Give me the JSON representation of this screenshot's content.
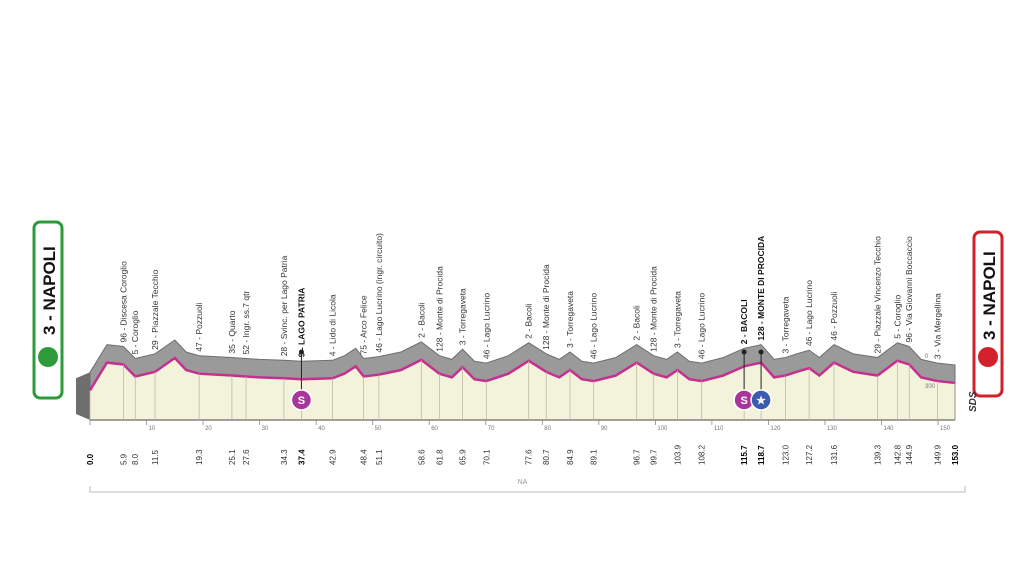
{
  "chart_data": {
    "type": "area",
    "start_city": "3 - NAPOLI",
    "finish_city": "3 - NAPOLI",
    "brand_mark": "SDS",
    "distance_total_label": "NA",
    "altitude_ticks": [
      "0",
      "300"
    ],
    "x_ticks": [
      0,
      10,
      20,
      30,
      40,
      50,
      60,
      70,
      80,
      90,
      100,
      110,
      120,
      130,
      140,
      150
    ],
    "xlim": [
      0,
      153
    ],
    "ylim": [
      0,
      130
    ],
    "profile": {
      "x": [
        0,
        3,
        5.9,
        8,
        11.5,
        15,
        17,
        19.3,
        25,
        27.6,
        30,
        34.3,
        37.4,
        42.9,
        45,
        47,
        48.4,
        51.1,
        55,
        58.6,
        61.8,
        64,
        65.9,
        68,
        70.1,
        74,
        77.6,
        80.7,
        83,
        84.9,
        87,
        89.1,
        93,
        96.7,
        99.7,
        102,
        103.9,
        106,
        108.2,
        112,
        115.7,
        118.7,
        121,
        123,
        125,
        127.2,
        129,
        131.6,
        135,
        139.3,
        142.8,
        144.9,
        147,
        149.9,
        153
      ],
      "y": [
        30,
        60,
        58,
        45,
        50,
        65,
        52,
        48,
        46,
        45,
        44,
        43,
        42,
        43,
        48,
        56,
        45,
        47,
        52,
        63,
        48,
        44,
        55,
        42,
        40,
        48,
        62,
        50,
        44,
        52,
        42,
        40,
        46,
        60,
        48,
        44,
        52,
        42,
        40,
        46,
        56,
        60,
        44,
        46,
        50,
        54,
        46,
        60,
        50,
        46,
        62,
        58,
        44,
        40,
        38
      ]
    },
    "waypoints": [
      {
        "km": "0.0",
        "x": 0,
        "label": "",
        "bold": true
      },
      {
        "km": "5.9",
        "x": 5.9,
        "label": "96 - Discesa Coroglio",
        "bold": false
      },
      {
        "km": "8.0",
        "x": 8,
        "label": "5 - Coroglio",
        "bold": false
      },
      {
        "km": "11.5",
        "x": 11.5,
        "label": "29 - Piazzale Tecchio",
        "bold": false
      },
      {
        "km": "19.3",
        "x": 19.3,
        "label": "47 - Pozzuoli",
        "bold": false
      },
      {
        "km": "25.1",
        "x": 25.1,
        "label": "35 - Quarto",
        "bold": false
      },
      {
        "km": "27.6",
        "x": 27.6,
        "label": "52 - Ingr. ss.7 qtr",
        "bold": false
      },
      {
        "km": "34.3",
        "x": 34.3,
        "label": "28 - Svinc. per Lago Patria",
        "bold": false
      },
      {
        "km": "37.4",
        "x": 37.4,
        "label": "9 - LAGO PATRIA",
        "bold": true
      },
      {
        "km": "42.9",
        "x": 42.9,
        "label": "4 - Lido di Licola",
        "bold": false
      },
      {
        "km": "48.4",
        "x": 48.4,
        "label": "75 - Arco Felice",
        "bold": false
      },
      {
        "km": "51.1",
        "x": 51.1,
        "label": "46 - Lago Lucrino (ingr. circuito)",
        "bold": false
      },
      {
        "km": "58.6",
        "x": 58.6,
        "label": "2 - Bacoli",
        "bold": false
      },
      {
        "km": "61.8",
        "x": 61.8,
        "label": "128 - Monte di Procida",
        "bold": false
      },
      {
        "km": "65.9",
        "x": 65.9,
        "label": "3 - Torregaveta",
        "bold": false
      },
      {
        "km": "70.1",
        "x": 70.1,
        "label": "46 - Lago Lucrino",
        "bold": false
      },
      {
        "km": "77.6",
        "x": 77.6,
        "label": "2 - Bacoli",
        "bold": false
      },
      {
        "km": "80.7",
        "x": 80.7,
        "label": "128 - Monte di Procida",
        "bold": false
      },
      {
        "km": "84.9",
        "x": 84.9,
        "label": "3 - Torregaveta",
        "bold": false
      },
      {
        "km": "89.1",
        "x": 89.1,
        "label": "46 - Lago Lucrino",
        "bold": false
      },
      {
        "km": "96.7",
        "x": 96.7,
        "label": "2 - Bacoli",
        "bold": false
      },
      {
        "km": "99.7",
        "x": 99.7,
        "label": "128 - Monte di Procida",
        "bold": false
      },
      {
        "km": "103.9",
        "x": 103.9,
        "label": "3 - Torregaveta",
        "bold": false
      },
      {
        "km": "108.2",
        "x": 108.2,
        "label": "46 - Lago Lucrino",
        "bold": false
      },
      {
        "km": "115.7",
        "x": 115.7,
        "label": "2 - BACOLI",
        "bold": true
      },
      {
        "km": "118.7",
        "x": 118.7,
        "label": "128 - MONTE DI PROCIDA",
        "bold": true
      },
      {
        "km": "123.0",
        "x": 123,
        "label": "3 - Torregaveta",
        "bold": false
      },
      {
        "km": "127.2",
        "x": 127.2,
        "label": "46 - Lago Lucrino",
        "bold": false
      },
      {
        "km": "131.6",
        "x": 131.6,
        "label": "46 - Pozzuoli",
        "bold": false
      },
      {
        "km": "139.3",
        "x": 139.3,
        "label": "29 - Piazzale Vincenzo Tecchio",
        "bold": false
      },
      {
        "km": "142.8",
        "x": 142.8,
        "label": "5 - Coroglio",
        "bold": false
      },
      {
        "km": "144.9",
        "x": 144.9,
        "label": "96 - Via Giovanni Boccaccio",
        "bold": false
      },
      {
        "km": "149.9",
        "x": 149.9,
        "label": "3 - Via Mergellina",
        "bold": false
      },
      {
        "km": "153.0",
        "x": 153,
        "label": "",
        "bold": true
      }
    ],
    "sprints": [
      {
        "x": 37.4,
        "glyph": "S",
        "kind": "sprint",
        "color": "#a8359a"
      },
      {
        "x": 115.7,
        "glyph": "S",
        "kind": "sprint",
        "color": "#a8359a"
      },
      {
        "x": 118.7,
        "glyph": "★",
        "kind": "kom",
        "color": "#3a5bb0"
      }
    ],
    "colors": {
      "profile_fill": "#9a9a9a",
      "profile_dark": "#6e6e6e",
      "road_line": "#c5308e",
      "plain_fill": "#f3f3dc",
      "start_green": "#2e9b3b",
      "finish_red": "#d3212c"
    }
  }
}
